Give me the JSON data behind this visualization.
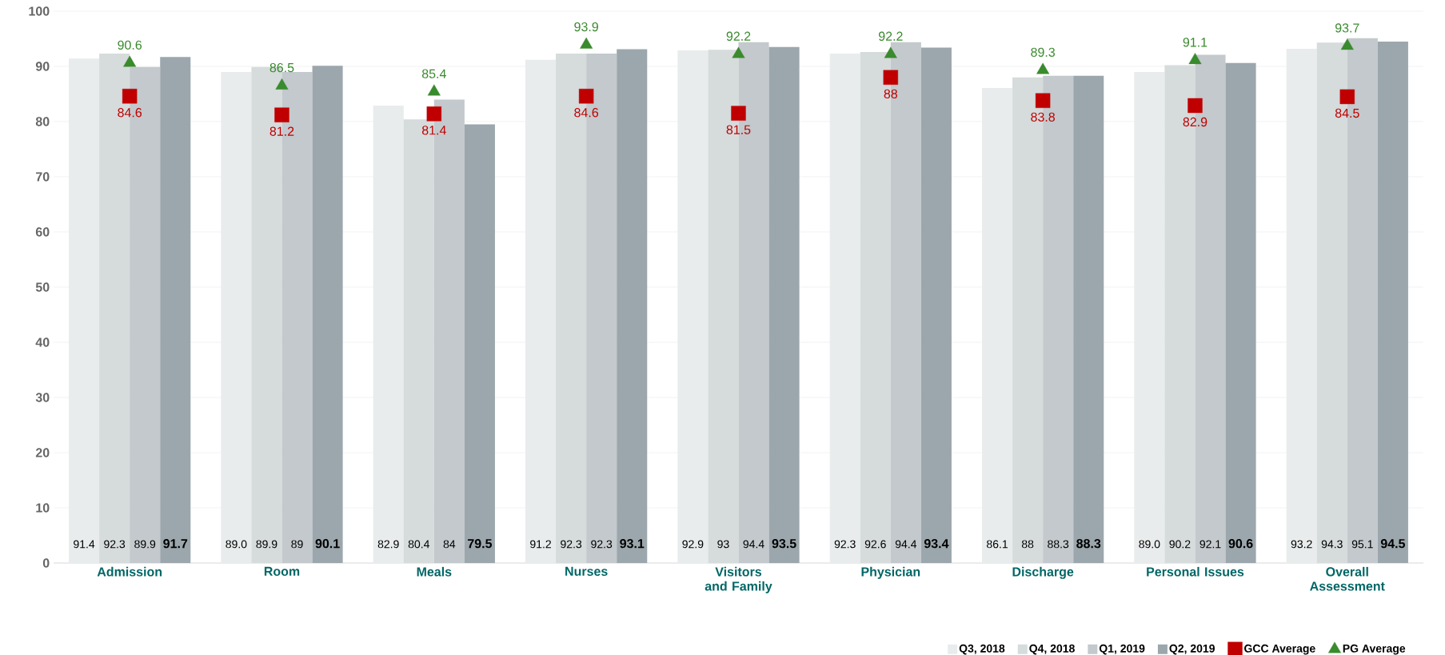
{
  "chart_data": {
    "type": "bar",
    "categories": [
      "Admission",
      "Room",
      "Meals",
      "Nurses",
      "Visitors and Family",
      "Physician",
      "Discharge",
      "Personal Issues",
      "Overall Assessment"
    ],
    "ylim": [
      0,
      100
    ],
    "yticks": [
      0,
      10,
      20,
      30,
      40,
      50,
      60,
      70,
      80,
      90,
      100
    ],
    "grid": "y",
    "legend": "bottom",
    "series": [
      {
        "name": "Q3, 2018",
        "color": "#e9ecec",
        "values": [
          91.4,
          89.0,
          82.9,
          91.2,
          92.9,
          92.3,
          86.1,
          89.0,
          93.2
        ],
        "value_labels": [
          "91.4",
          "89.0",
          "82.9",
          "91.2",
          "92.9",
          "92.3",
          "86.1",
          "89.0",
          "93.2"
        ]
      },
      {
        "name": "Q4, 2018",
        "color": "#d6dbdc",
        "values": [
          92.3,
          89.9,
          80.4,
          92.3,
          93,
          92.6,
          88,
          90.2,
          94.3
        ],
        "value_labels": [
          "92.3",
          "89.9",
          "80.4",
          "92.3",
          "93",
          "92.6",
          "88",
          "90.2",
          "94.3"
        ]
      },
      {
        "name": "Q1, 2019",
        "color": "#c3c9cc",
        "values": [
          89.9,
          89,
          84,
          92.3,
          94.4,
          94.4,
          88.3,
          92.1,
          95.1
        ],
        "value_labels": [
          "89.9",
          "89",
          "84",
          "92.3",
          "94.4",
          "94.4",
          "88.3",
          "92.1",
          "95.1"
        ]
      },
      {
        "name": "Q2, 2019",
        "color": "#9ca7ad",
        "values": [
          91.7,
          90.1,
          79.5,
          93.1,
          93.5,
          93.4,
          88.3,
          90.6,
          94.5
        ],
        "value_labels": [
          "91.7",
          "90.1",
          "79.5",
          "93.1",
          "93.5",
          "93.4",
          "88.3",
          "90.6",
          "94.5"
        ]
      },
      {
        "name": "GCC Average",
        "type": "scatter",
        "marker": "square",
        "color": "#c00000",
        "values": [
          84.6,
          81.2,
          81.4,
          84.6,
          81.5,
          88,
          83.8,
          82.9,
          84.5
        ],
        "value_labels": [
          "84.6",
          "81.2",
          "81.4",
          "84.6",
          "81.5",
          "88",
          "83.8",
          "82.9",
          "84.5"
        ]
      },
      {
        "name": "PG Average",
        "type": "scatter",
        "marker": "triangle",
        "color": "#3a8a2e",
        "values": [
          90.6,
          86.5,
          85.4,
          93.9,
          92.2,
          92.2,
          89.3,
          91.1,
          93.7
        ],
        "value_labels": [
          "90.6",
          "86.5",
          "85.4",
          "93.9",
          "92.2",
          "92.2",
          "89.3",
          "91.1",
          "93.7"
        ]
      }
    ]
  }
}
